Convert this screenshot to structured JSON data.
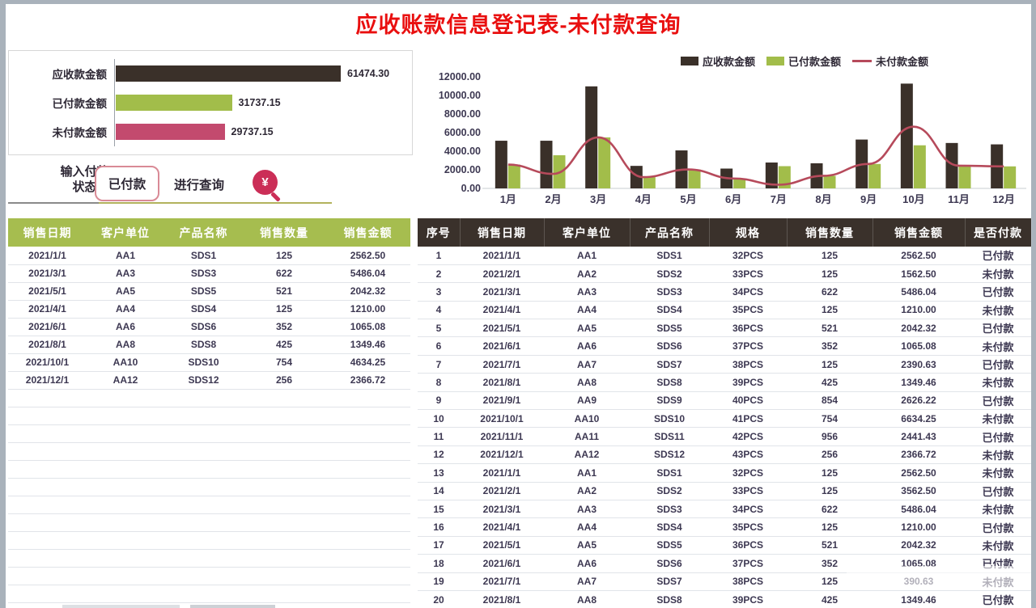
{
  "title": "应收账款信息登记表-未付款查询",
  "controls": {
    "status_label_line1": "输入付款",
    "status_label_line2": "状态",
    "status_value": "已付款",
    "query_label": "进行查询",
    "query_icon_symbol": "¥"
  },
  "colors": {
    "receivable_dark": "#3a3029",
    "paid_green": "#a2bd4a",
    "unpaid_pink": "#c34a6e",
    "unpaid_line_red": "#b64a5b",
    "left_header_bg": "#a6bd4f",
    "right_header_bg": "#3a312b",
    "title_red": "#e90f0f"
  },
  "chart_data": [
    {
      "type": "bar",
      "orientation": "horizontal",
      "title": "",
      "categories": [
        "应收款金额",
        "已付款金额",
        "未付款金额"
      ],
      "values": [
        61474.3,
        31737.15,
        29737.15
      ],
      "value_labels": [
        "61474.30",
        "31737.15",
        "29737.15"
      ],
      "colors": [
        "#3a3029",
        "#a2bd4a",
        "#c34a6e"
      ],
      "xlim": [
        0,
        65000
      ],
      "grid": false
    },
    {
      "type": "bar+line",
      "title": "",
      "categories": [
        "1月",
        "2月",
        "3月",
        "4月",
        "5月",
        "6月",
        "7月",
        "8月",
        "9月",
        "10月",
        "11月",
        "12月"
      ],
      "series": [
        {
          "name": "应收款金额",
          "kind": "bar",
          "color": "#3a3029",
          "values": [
            5125.0,
            5125.0,
            10972.08,
            2420.0,
            4084.64,
            2130.16,
            2781.26,
            2698.92,
            5252.44,
            11268.5,
            4882.86,
            4733.44
          ]
        },
        {
          "name": "已付款金额",
          "kind": "bar",
          "color": "#a2bd4a",
          "values": [
            2562.5,
            3562.5,
            5486.04,
            1210.0,
            2042.32,
            1065.08,
            2390.63,
            1349.46,
            2626.22,
            4634.25,
            2441.43,
            2366.72
          ]
        },
        {
          "name": "未付款金额",
          "kind": "line",
          "color": "#b64a5b",
          "values": [
            2562.5,
            1562.5,
            5486.04,
            1210.0,
            2042.32,
            1065.08,
            390.63,
            1349.46,
            2626.22,
            6634.25,
            2441.43,
            2366.72
          ]
        }
      ],
      "ylim": [
        0,
        12000
      ],
      "yticks": [
        "12000.00",
        "10000.00",
        "8000.00",
        "6000.00",
        "4000.00",
        "2000.00",
        "0.00"
      ],
      "legend_position": "top",
      "grid": false
    }
  ],
  "left_table": {
    "headers": [
      "销售日期",
      "客户单位",
      "产品名称",
      "销售数量",
      "销售金额"
    ],
    "rows": [
      [
        "2021/1/1",
        "AA1",
        "SDS1",
        "125",
        "2562.50"
      ],
      [
        "2021/3/1",
        "AA3",
        "SDS3",
        "622",
        "5486.04"
      ],
      [
        "2021/5/1",
        "AA5",
        "SDS5",
        "521",
        "2042.32"
      ],
      [
        "2021/4/1",
        "AA4",
        "SDS4",
        "125",
        "1210.00"
      ],
      [
        "2021/6/1",
        "AA6",
        "SDS6",
        "352",
        "1065.08"
      ],
      [
        "2021/8/1",
        "AA8",
        "SDS8",
        "425",
        "1349.46"
      ],
      [
        "2021/10/1",
        "AA10",
        "SDS10",
        "754",
        "4634.25"
      ],
      [
        "2021/12/1",
        "AA12",
        "SDS12",
        "256",
        "2366.72"
      ]
    ],
    "empty_row_count": 12
  },
  "right_table": {
    "headers": [
      "序号",
      "销售日期",
      "客户单位",
      "产品名称",
      "规格",
      "销售数量",
      "销售金额",
      "是否付款"
    ],
    "rows": [
      [
        "1",
        "2021/1/1",
        "AA1",
        "SDS1",
        "32PCS",
        "125",
        "2562.50",
        "已付款"
      ],
      [
        "2",
        "2021/2/1",
        "AA2",
        "SDS2",
        "33PCS",
        "125",
        "1562.50",
        "未付款"
      ],
      [
        "3",
        "2021/3/1",
        "AA3",
        "SDS3",
        "34PCS",
        "622",
        "5486.04",
        "已付款"
      ],
      [
        "4",
        "2021/4/1",
        "AA4",
        "SDS4",
        "35PCS",
        "125",
        "1210.00",
        "未付款"
      ],
      [
        "5",
        "2021/5/1",
        "AA5",
        "SDS5",
        "36PCS",
        "521",
        "2042.32",
        "已付款"
      ],
      [
        "6",
        "2021/6/1",
        "AA6",
        "SDS6",
        "37PCS",
        "352",
        "1065.08",
        "未付款"
      ],
      [
        "7",
        "2021/7/1",
        "AA7",
        "SDS7",
        "38PCS",
        "125",
        "2390.63",
        "已付款"
      ],
      [
        "8",
        "2021/8/1",
        "AA8",
        "SDS8",
        "39PCS",
        "425",
        "1349.46",
        "未付款"
      ],
      [
        "9",
        "2021/9/1",
        "AA9",
        "SDS9",
        "40PCS",
        "854",
        "2626.22",
        "已付款"
      ],
      [
        "10",
        "2021/10/1",
        "AA10",
        "SDS10",
        "41PCS",
        "754",
        "6634.25",
        "未付款"
      ],
      [
        "11",
        "2021/11/1",
        "AA11",
        "SDS11",
        "42PCS",
        "956",
        "2441.43",
        "已付款"
      ],
      [
        "12",
        "2021/12/1",
        "AA12",
        "SDS12",
        "43PCS",
        "256",
        "2366.72",
        "未付款"
      ],
      [
        "13",
        "2021/1/1",
        "AA1",
        "SDS1",
        "32PCS",
        "125",
        "2562.50",
        "未付款"
      ],
      [
        "14",
        "2021/2/1",
        "AA2",
        "SDS2",
        "33PCS",
        "125",
        "3562.50",
        "已付款"
      ],
      [
        "15",
        "2021/3/1",
        "AA3",
        "SDS3",
        "34PCS",
        "622",
        "5486.04",
        "未付款"
      ],
      [
        "16",
        "2021/4/1",
        "AA4",
        "SDS4",
        "35PCS",
        "125",
        "1210.00",
        "已付款"
      ],
      [
        "17",
        "2021/5/1",
        "AA5",
        "SDS5",
        "36PCS",
        "521",
        "2042.32",
        "未付款"
      ],
      [
        "18",
        "2021/6/1",
        "AA6",
        "SDS6",
        "37PCS",
        "352",
        "1065.08",
        "已付款"
      ],
      [
        "19",
        "2021/7/1",
        "AA7",
        "SDS7",
        "38PCS",
        "125",
        "390.63",
        "未付款"
      ],
      [
        "20",
        "2021/8/1",
        "AA8",
        "SDS8",
        "39PCS",
        "425",
        "1349.46",
        "已付款"
      ]
    ]
  }
}
